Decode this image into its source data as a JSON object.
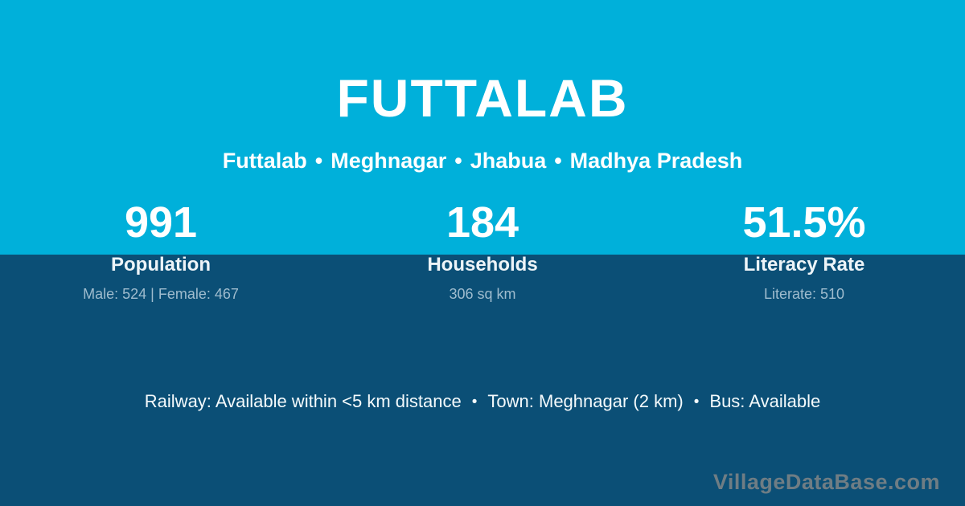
{
  "village": {
    "title": "FUTTALAB"
  },
  "breadcrumb": {
    "items": [
      "Futtalab",
      "Meghnagar",
      "Jhabua",
      "Madhya Pradesh"
    ],
    "separator": "•"
  },
  "stats": [
    {
      "value": "991",
      "label": "Population",
      "detail": "Male: 524 | Female: 467"
    },
    {
      "value": "184",
      "label": "Households",
      "detail": "306 sq km"
    },
    {
      "value": "51.5%",
      "label": "Literacy Rate",
      "detail": "Literate: 510"
    }
  ],
  "footer": {
    "items": [
      "Railway: Available within <5 km distance",
      "Town: Meghnagar (2 km)",
      "Bus: Available"
    ],
    "separator": "•"
  },
  "watermark": "VillageDataBase.com",
  "colors": {
    "top_background": "#00b0da",
    "bottom_background": "#0b4f76",
    "text_primary": "#ffffff",
    "text_secondary": "#9fbcce",
    "watermark": "#6f7d84"
  }
}
